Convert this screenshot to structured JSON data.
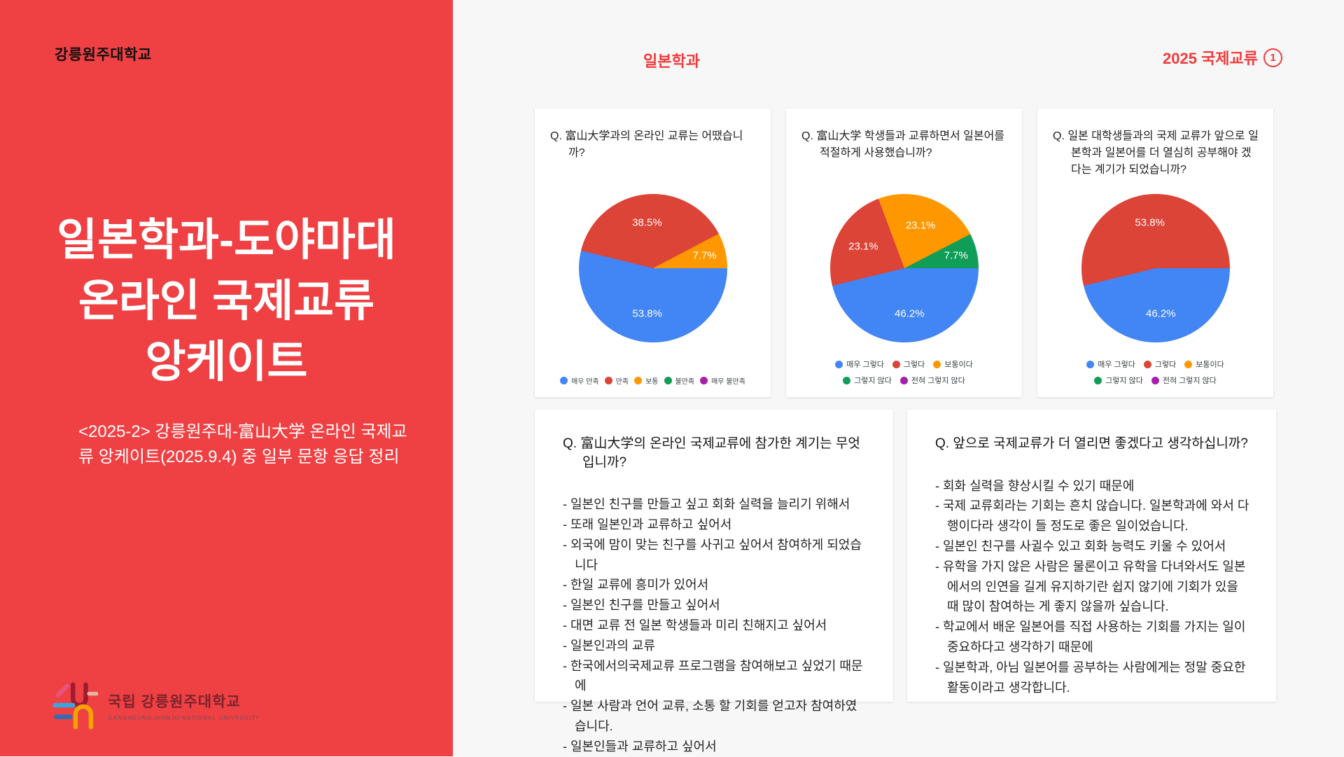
{
  "left_panel": {
    "university": "강릉원주대학교",
    "title_lines": [
      "일본학과-도야마대",
      "온라인 국제교류",
      "앙케이트"
    ],
    "subtitle": "<2025-2> 강릉원주대-富山大学 온라인 국제교류 앙케이트(2025.9.4) 중 일부 문항 응답 정리",
    "logo_text": "국립 강릉원주대학교",
    "logo_subtext": "GANGNEUNG-WONJU NATIONAL UNIVERSITY"
  },
  "header": {
    "department": "일본학과",
    "badge_text": "2025 국제교류",
    "badge_number": "1"
  },
  "colors": {
    "panel_red": "#EF4043",
    "accent_red": "#F23B3B",
    "content_bg": "#F7F7F8",
    "card_bg": "#FFFFFF",
    "pie_blue": "#4285F4",
    "pie_red": "#DB4437",
    "pie_orange": "#FF9800",
    "pie_green": "#109D58",
    "pie_purple": "#A61FA8"
  },
  "chart_data": [
    {
      "type": "pie",
      "title": "Q. 富山大学과의 온라인 교류는 어땠습니까?",
      "legend_position": "bottom",
      "slices": [
        {
          "label": "매우 만족",
          "value": 53.8,
          "color": "#4285F4"
        },
        {
          "label": "만족",
          "value": 38.5,
          "color": "#DB4437"
        },
        {
          "label": "보통",
          "value": 7.7,
          "color": "#FF9800"
        },
        {
          "label": "불만족",
          "value": 0,
          "color": "#109D58"
        },
        {
          "label": "매우 불만족",
          "value": 0,
          "color": "#A61FA8"
        }
      ]
    },
    {
      "type": "pie",
      "title": "Q. 富山大学 학생들과 교류하면서 일본어를 적절하게 사용했습니까?",
      "legend_position": "bottom",
      "slices": [
        {
          "label": "매우 그렇다",
          "value": 46.2,
          "color": "#4285F4"
        },
        {
          "label": "그렇다",
          "value": 23.1,
          "color": "#DB4437"
        },
        {
          "label": "보통이다",
          "value": 23.1,
          "color": "#FF9800"
        },
        {
          "label": "그렇지 않다",
          "value": 7.7,
          "color": "#109D58"
        },
        {
          "label": "전혀 그렇지 않다",
          "value": 0,
          "color": "#A61FA8"
        }
      ]
    },
    {
      "type": "pie",
      "title": "Q. 일본 대학생들과의 국제 교류가 앞으로 일본학과 일본어를 더 열심히 공부해야 겠다는 계기가 되었습니까?",
      "legend_position": "bottom",
      "slices": [
        {
          "label": "매우 그렇다",
          "value": 46.2,
          "color": "#4285F4"
        },
        {
          "label": "그렇다",
          "value": 53.8,
          "color": "#DB4437"
        },
        {
          "label": "보통이다",
          "value": 0,
          "color": "#FF9800"
        },
        {
          "label": "그렇지 않다",
          "value": 0,
          "color": "#109D58"
        },
        {
          "label": "전혀 그렇지 않다",
          "value": 0,
          "color": "#A61FA8"
        }
      ]
    }
  ],
  "qa_cards": [
    {
      "title": "Q. 富山大学의 온라인 국제교류에 참가한 계기는 무엇입니까?",
      "answers": [
        "- 일본인 친구를 만들고 싶고 회화 실력을 늘리기 위해서",
        "- 또래 일본인과 교류하고 싶어서",
        "- 외국에 맘이 맞는 친구를 사귀고 싶어서 참여하게 되었습니다",
        "- 한일 교류에 흥미가 있어서",
        "- 일본인 친구를 만들고 싶어서",
        "- 대면 교류 전 일본 학생들과 미리 친해지고 싶어서",
        "- 일본인과의 교류",
        "- 한국에서의국제교류 프로그램을 참여해보고 싶었기 때문에",
        "- 일본 사람과 언어 교류, 소통 할 기회를 얻고자 참여하였습니다.",
        "- 일본인들과 교류하고 싶어서"
      ]
    },
    {
      "title": "Q. 앞으로 국제교류가 더 열리면 좋겠다고 생각하십니까?",
      "answers": [
        "- 회화 실력을 향상시킬 수 있기 때문에",
        "- 국제 교류회라는 기회는 흔치 않습니다. 일본학과에 와서 다행이다라 생각이 들 정도로 좋은 일이었습니다.",
        "- 일본인 친구를 사귈수 있고 회화 능력도 키울 수 있어서",
        "- 유학을 가지 않은 사람은 물론이고 유학을 다녀와서도 일본에서의 인연을 길게 유지하기란 쉽지 않기에 기회가 있을 때 많이 참여하는 게 좋지 않을까 싶습니다.",
        "- 학교에서 배운 일본어를 직접 사용하는 기회를 가지는 일이 중요하다고 생각하기 때문에",
        "- 일본학과, 아님 일본어를 공부하는 사람에게는 정말 중요한 활동이라고 생각합니다."
      ]
    }
  ]
}
